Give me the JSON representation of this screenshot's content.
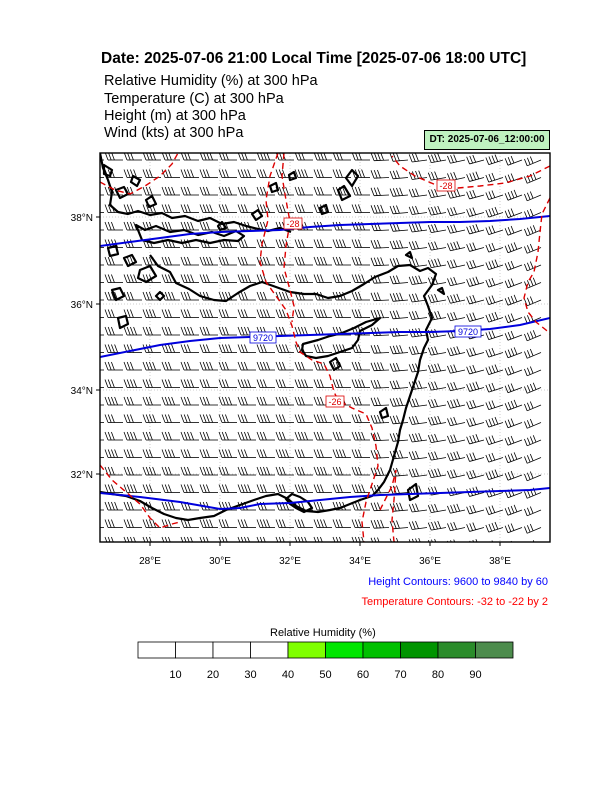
{
  "header": {
    "title": "Date: 2025-07-06  21:00 Local Time [2025-07-06  18:00 UTC]",
    "fields": [
      "Relative Humidity   (%)     at   300 hPa",
      "Temperature   (C)     at   300 hPa",
      "Height   (m)     at   300 hPa",
      "Wind   (kts)     at   300 hPa"
    ]
  },
  "valid_time_badge": "DT: 2025-07-06_12:00:00",
  "map": {
    "lat_ticks": [
      "32°N",
      "34°N",
      "36°N",
      "38°N"
    ],
    "lon_ticks": [
      "28°E",
      "30°E",
      "32°E",
      "34°E",
      "36°E",
      "38°E"
    ],
    "height_contour_labels": [
      "9720",
      "9720"
    ],
    "temperature_contour_labels": [
      "-28",
      "-28",
      "-26"
    ],
    "colors": {
      "coastline": "#000000",
      "height_contour": "#0000dd",
      "temperature_contour": "#dd0000",
      "wind_barb": "#000000",
      "grid": "#9a9a9a"
    }
  },
  "legend": {
    "height_contours": "Height Contours: 9600 to 9840 by 60",
    "temperature_contours": "Temperature Contours: -32 to -22 by 2",
    "height_color": "#0000ff",
    "temperature_color": "#ff0000"
  },
  "colorbar": {
    "title": "Relative Humidity  (%)",
    "tick_labels": [
      "10",
      "20",
      "30",
      "40",
      "50",
      "60",
      "70",
      "80",
      "90"
    ],
    "colors": [
      "#ffffff",
      "#ffffff",
      "#ffffff",
      "#ffffff",
      "#7fff00",
      "#00e600",
      "#00c000",
      "#009400",
      "#2b8c2b",
      "#4d8c4d"
    ]
  }
}
